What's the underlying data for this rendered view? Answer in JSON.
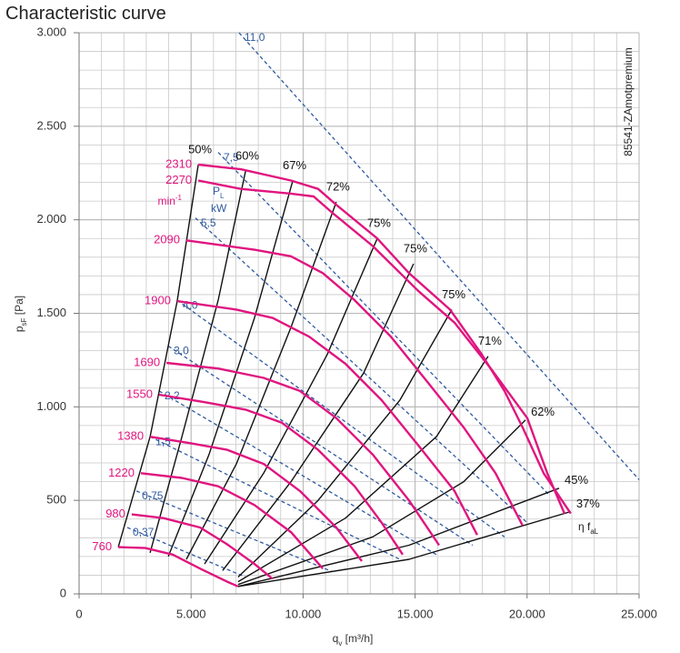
{
  "chart_data": {
    "type": "line",
    "title": "Characteristic curve",
    "side_note": "85541-ZAmotpremium",
    "xlabel": {
      "base": "q",
      "sub": "v",
      "rest": " [m³/h]"
    },
    "ylabel": {
      "base": "p",
      "sub": "sF",
      "rest": " [Pa]"
    },
    "xlim": [
      0,
      25000
    ],
    "ylim": [
      0,
      3000
    ],
    "xticks": [
      0,
      {
        "value": 5000,
        "label": "5.000"
      },
      {
        "value": 10000,
        "label": "10.000"
      },
      {
        "value": 15000,
        "label": "15.000"
      },
      {
        "value": 20000,
        "label": "20.000"
      },
      {
        "value": 25000,
        "label": "25.000"
      }
    ],
    "yticks": [
      0,
      500,
      {
        "value": 1000,
        "label": "1.000"
      },
      {
        "value": 1500,
        "label": "1.500"
      },
      {
        "value": 2000,
        "label": "2.000"
      },
      {
        "value": 2500,
        "label": "2.500"
      },
      {
        "value": 3000,
        "label": "3.000"
      }
    ],
    "grid": true,
    "x_minor_step": 1000,
    "y_minor_step": 100,
    "speed_color": "#e0157f",
    "efficiency_color": "#111111",
    "power_color": "#2f5a9e",
    "speed_unit": {
      "base": "min",
      "sup": "-1"
    },
    "power_label": {
      "base": "P",
      "sub": "L",
      "unit": "kW"
    },
    "efficiency_symbol": {
      "base": "η f",
      "sub": "aL"
    },
    "speed_curves": [
      {
        "name": "2310",
        "x": [
          5320,
          7220,
          9460,
          10670,
          11480,
          13310,
          14730,
          16560,
          17980,
          18990,
          19800,
          20740,
          21950
        ],
        "values": [
          2295,
          2270,
          2210,
          2165,
          2080,
          1900,
          1715,
          1520,
          1280,
          1085,
          890,
          645,
          430
        ]
      },
      {
        "name": "2270",
        "x": [
          5320,
          7220,
          9460,
          10470,
          11280,
          13110,
          15140,
          16760,
          18380,
          20010,
          20900,
          21670
        ],
        "values": [
          2210,
          2165,
          2140,
          2125,
          2040,
          1860,
          1620,
          1450,
          1205,
          940,
          645,
          430
        ]
      },
      {
        "name": "2090",
        "x": [
          4790,
          7830,
          9460,
          10880,
          12300,
          13920,
          15540,
          17170,
          18590,
          19800
        ],
        "values": [
          1890,
          1840,
          1805,
          1715,
          1570,
          1375,
          1135,
          890,
          645,
          365
        ]
      },
      {
        "name": "1900",
        "x": [
          4380,
          7020,
          8640,
          10270,
          11890,
          13510,
          15140,
          16760,
          17770
        ],
        "values": [
          1565,
          1520,
          1475,
          1375,
          1230,
          1035,
          795,
          550,
          315
        ]
      },
      {
        "name": "1690",
        "x": [
          3900,
          6210,
          8240,
          9860,
          11480,
          13110,
          14730,
          16070
        ],
        "values": [
          1235,
          1205,
          1155,
          1085,
          940,
          745,
          500,
          260
        ]
      },
      {
        "name": "1550",
        "x": [
          3570,
          5600,
          7430,
          9050,
          10670,
          12300,
          13510,
          14450
        ],
        "values": [
          1065,
          1025,
          985,
          915,
          770,
          575,
          380,
          210
        ]
      },
      {
        "name": "1380",
        "x": [
          3170,
          4990,
          6610,
          8240,
          9860,
          11480,
          12620
        ],
        "values": [
          840,
          805,
          770,
          695,
          550,
          355,
          175
        ]
      },
      {
        "name": "1220",
        "x": [
          2760,
          4590,
          6210,
          7830,
          9460,
          10880
        ],
        "values": [
          645,
          620,
          575,
          475,
          330,
          135
        ]
      },
      {
        "name": "980",
        "x": [
          2350,
          3770,
          5400,
          6610,
          7830,
          8640
        ],
        "values": [
          425,
          405,
          355,
          265,
          160,
          80
        ]
      },
      {
        "name": "760",
        "x": [
          1750,
          2960,
          4180,
          5400,
          6610,
          7100
        ],
        "values": [
          250,
          245,
          210,
          135,
          65,
          40
        ]
      }
    ],
    "efficiency_lines": [
      {
        "name": "50%",
        "x": [
          1750,
          3170,
          4380,
          5320
        ],
        "values": [
          250,
          840,
          1565,
          2295
        ]
      },
      {
        "name": "60%",
        "x": [
          3170,
          4590,
          6210,
          7430
        ],
        "values": [
          220,
          840,
          1570,
          2260
        ]
      },
      {
        "name": "67%",
        "x": [
          3980,
          5800,
          7830,
          9540
        ],
        "values": [
          200,
          745,
          1475,
          2210
        ]
      },
      {
        "name": "72%",
        "x": [
          4790,
          7020,
          9460,
          11480
        ],
        "values": [
          185,
          695,
          1425,
          2095
        ]
      },
      {
        "name": "75%",
        "x": [
          5600,
          8240,
          11080,
          13310
        ],
        "values": [
          160,
          645,
          1280,
          1900
        ]
      },
      {
        "name": "75%",
        "x": [
          6410,
          9460,
          12700,
          14930
        ],
        "values": [
          125,
          600,
          1180,
          1765
        ]
      },
      {
        "name": "75%",
        "x": [
          7100,
          10670,
          14320,
          16640
        ],
        "values": [
          90,
          500,
          1035,
          1520
        ]
      },
      {
        "name": "71%",
        "x": [
          7100,
          11890,
          15950,
          18260
        ],
        "values": [
          65,
          405,
          840,
          1270
        ]
      },
      {
        "name": "62%",
        "x": [
          7100,
          13110,
          17170,
          19930
        ],
        "values": [
          50,
          305,
          600,
          930
        ]
      },
      {
        "name": "45%",
        "x": [
          7100,
          14730,
          21430
        ],
        "values": [
          40,
          260,
          565
        ]
      },
      {
        "name": "37%",
        "x": [
          7100,
          14730,
          21950
        ],
        "values": [
          40,
          185,
          440
        ]
      }
    ],
    "power_lines": [
      {
        "name": "11,0",
        "x": [
          7140,
          25000
        ],
        "values": [
          3000,
          610
        ]
      },
      {
        "name": "7,5",
        "x": [
          6210,
          21020
        ],
        "values": [
          2360,
          525
        ]
      },
      {
        "name": "5,5",
        "x": [
          5190,
          20010
        ],
        "values": [
          2010,
          380
        ]
      },
      {
        "name": "4,0",
        "x": [
          4380,
          18990
        ],
        "values": [
          1570,
          305
        ]
      },
      {
        "name": "3,0",
        "x": [
          3980,
          17570
        ],
        "values": [
          1325,
          260
        ]
      },
      {
        "name": "2,2",
        "x": [
          3570,
          15950
        ],
        "values": [
          1085,
          210
        ]
      },
      {
        "name": "1,5",
        "x": [
          3170,
          14320
        ],
        "values": [
          840,
          185
        ]
      },
      {
        "name": "0,75",
        "x": [
          2560,
          11280
        ],
        "values": [
          550,
          120
        ]
      },
      {
        "name": "0,37",
        "x": [
          2150,
          7430
        ],
        "values": [
          355,
          90
        ]
      }
    ]
  }
}
